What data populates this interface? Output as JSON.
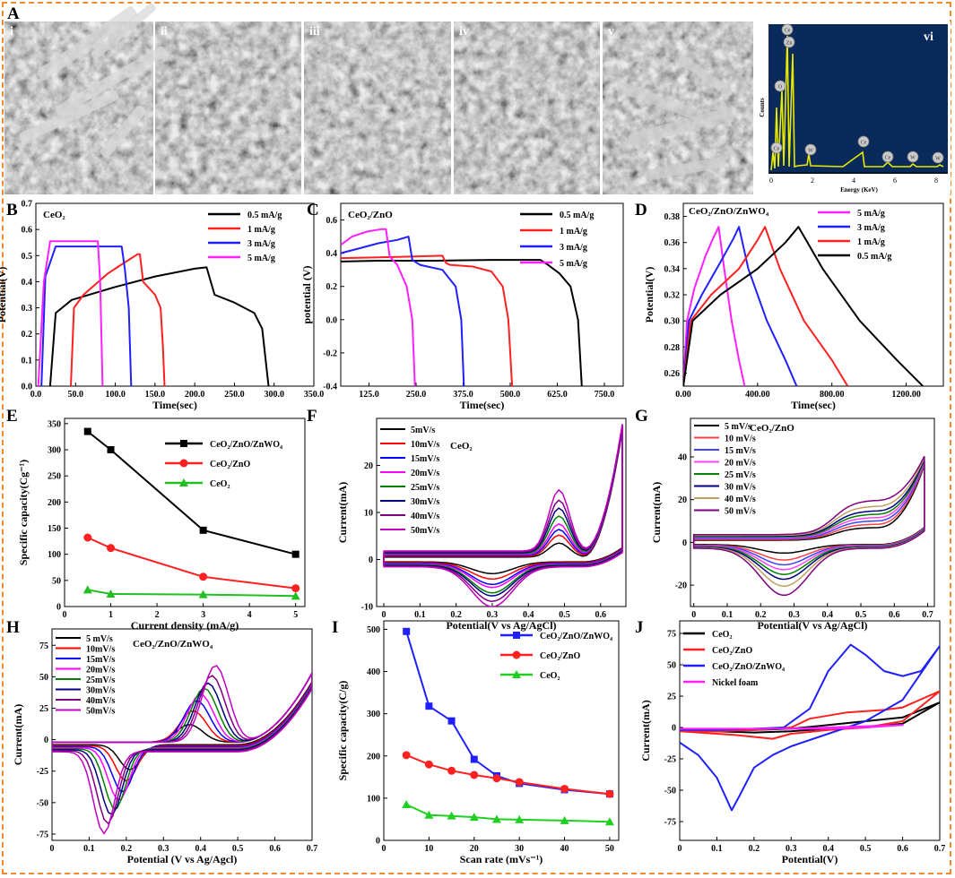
{
  "panels": {
    "A": {
      "label": "A"
    },
    "sem_labels": [
      "i",
      "ii",
      "iii",
      "iv",
      "v"
    ],
    "edx": {
      "label": "vi",
      "xlabel": "Energy (KeV)",
      "ylabel": "Counts",
      "ticks": [
        "0",
        "2",
        "4",
        "6",
        "8"
      ],
      "peaks": [
        "Ce",
        "Zn",
        "O",
        "Ce",
        "W",
        "Ce",
        "Ce",
        "W",
        "W"
      ],
      "colors": {
        "bg": "#0b2a5c",
        "spectrum": "#e8e800"
      }
    }
  },
  "chart_data": [
    {
      "id": "B",
      "type": "line",
      "title": "CeO₂",
      "xlabel": "Time(sec)",
      "ylabel": "Potential(V)",
      "xlim": [
        0,
        350
      ],
      "ylim": [
        0,
        0.7
      ],
      "xticks": [
        0,
        50,
        100,
        150,
        200,
        250,
        300,
        350
      ],
      "yticks": [
        0.0,
        0.1,
        0.2,
        0.3,
        0.4,
        0.5,
        0.6,
        0.7
      ],
      "series": [
        {
          "name": "0.5 mA/g",
          "color": "#000000",
          "x": [
            18,
            25,
            45,
            100,
            150,
            200,
            215,
            225,
            250,
            275,
            285,
            290,
            293
          ],
          "y": [
            0,
            0.28,
            0.33,
            0.38,
            0.42,
            0.45,
            0.455,
            0.35,
            0.32,
            0.28,
            0.22,
            0.08,
            0
          ]
        },
        {
          "name": "1 mA/g",
          "color": "#ff2020",
          "x": [
            44,
            48,
            60,
            90,
            110,
            128,
            131,
            135,
            150,
            157,
            160,
            162
          ],
          "y": [
            0,
            0.3,
            0.35,
            0.43,
            0.47,
            0.505,
            0.505,
            0.4,
            0.35,
            0.3,
            0.15,
            0
          ]
        },
        {
          "name": "3 mA/g",
          "color": "#2020ff",
          "x": [
            7,
            12,
            25,
            108,
            112,
            117,
            120
          ],
          "y": [
            0,
            0.42,
            0.535,
            0.535,
            0.45,
            0.3,
            0
          ]
        },
        {
          "name": "5 mA/g",
          "color": "#ff20ff",
          "x": [
            3,
            10,
            18,
            78,
            81,
            84
          ],
          "y": [
            0,
            0.4,
            0.555,
            0.555,
            0.4,
            0
          ]
        }
      ]
    },
    {
      "id": "C",
      "type": "line",
      "title": "CeO₂/ZnO",
      "xlabel": "Time(sec)",
      "ylabel": "potential (V)",
      "xlim": [
        50,
        800
      ],
      "ylim": [
        -0.4,
        0.7
      ],
      "xticks": [
        125,
        250,
        375,
        500,
        625,
        750
      ],
      "yticks": [
        -0.4,
        -0.2,
        0.0,
        0.2,
        0.4,
        0.6
      ],
      "series": [
        {
          "name": "0.5 mA/g",
          "color": "#000000",
          "x": [
            50,
            150,
            300,
            450,
            580,
            600,
            630,
            660,
            680,
            690
          ],
          "y": [
            0.35,
            0.355,
            0.355,
            0.36,
            0.36,
            0.33,
            0.28,
            0.2,
            0,
            -0.4
          ]
        },
        {
          "name": "1 mA/g",
          "color": "#ff2020",
          "x": [
            50,
            150,
            250,
            320,
            330,
            340,
            400,
            450,
            480,
            495,
            505
          ],
          "y": [
            0.37,
            0.375,
            0.38,
            0.385,
            0.34,
            0.33,
            0.32,
            0.29,
            0.2,
            0,
            -0.4
          ]
        },
        {
          "name": "3 mA/g",
          "color": "#2020ff",
          "x": [
            50,
            100,
            150,
            200,
            230,
            240,
            260,
            320,
            355,
            370,
            377
          ],
          "y": [
            0.4,
            0.43,
            0.46,
            0.48,
            0.5,
            0.36,
            0.33,
            0.3,
            0.2,
            0,
            -0.4
          ]
        },
        {
          "name": "5 mA/g",
          "color": "#ff20ff",
          "x": [
            50,
            80,
            120,
            160,
            170,
            180,
            200,
            225,
            240,
            247
          ],
          "y": [
            0.45,
            0.5,
            0.53,
            0.545,
            0.545,
            0.38,
            0.33,
            0.2,
            0,
            -0.4
          ]
        }
      ]
    },
    {
      "id": "D",
      "type": "line",
      "title": "CeO₂/ZnO/ZnWO₄",
      "xlabel": "Time(sec)",
      "ylabel": "Potential(V)",
      "xlim": [
        0,
        1400
      ],
      "ylim": [
        0.25,
        0.39
      ],
      "xticks": [
        0,
        400,
        800,
        1200
      ],
      "yticks": [
        0.26,
        0.28,
        0.3,
        0.32,
        0.34,
        0.36,
        0.38
      ],
      "series": [
        {
          "name": "5 mA/g",
          "color": "#ff20ff",
          "x": [
            0,
            20,
            60,
            120,
            160,
            190,
            220,
            260,
            300,
            330
          ],
          "y": [
            0.25,
            0.3,
            0.325,
            0.35,
            0.363,
            0.372,
            0.34,
            0.3,
            0.27,
            0.25
          ]
        },
        {
          "name": "3 mA/g",
          "color": "#2020ff",
          "x": [
            0,
            30,
            100,
            200,
            270,
            300,
            350,
            450,
            550,
            610
          ],
          "y": [
            0.25,
            0.3,
            0.32,
            0.345,
            0.363,
            0.372,
            0.34,
            0.3,
            0.27,
            0.25
          ]
        },
        {
          "name": "1 mA/g",
          "color": "#ff2020",
          "x": [
            0,
            40,
            150,
            300,
            400,
            440,
            520,
            650,
            800,
            885
          ],
          "y": [
            0.25,
            0.3,
            0.32,
            0.34,
            0.362,
            0.372,
            0.34,
            0.3,
            0.27,
            0.25
          ]
        },
        {
          "name": "0.5 mA/g",
          "color": "#000000",
          "x": [
            0,
            50,
            200,
            400,
            550,
            620,
            750,
            950,
            1150,
            1290
          ],
          "y": [
            0.25,
            0.3,
            0.32,
            0.34,
            0.36,
            0.372,
            0.34,
            0.3,
            0.27,
            0.25
          ]
        }
      ]
    },
    {
      "id": "E",
      "type": "line",
      "xlabel": "Current density   (mA/g)",
      "ylabel": "Specific capacity(Cg⁻¹)",
      "xlim": [
        0,
        5.2
      ],
      "ylim": [
        0,
        360
      ],
      "xticks": [
        0,
        1,
        2,
        3,
        4,
        5
      ],
      "yticks": [
        0,
        50,
        100,
        150,
        200,
        250,
        300,
        350
      ],
      "series": [
        {
          "name": "CeO₂/ZnO/ZnWO₄",
          "color": "#000000",
          "marker": "square",
          "x": [
            0.5,
            1,
            3,
            5
          ],
          "y": [
            335,
            300,
            146,
            100
          ]
        },
        {
          "name": "CeO₂/ZnO",
          "color": "#ff2020",
          "marker": "circle",
          "x": [
            0.5,
            1,
            3,
            5
          ],
          "y": [
            132,
            112,
            57,
            35
          ]
        },
        {
          "name": "CeO₂",
          "color": "#20c020",
          "marker": "triangle",
          "x": [
            0.5,
            1,
            3,
            5
          ],
          "y": [
            32,
            24,
            23,
            20
          ]
        }
      ]
    },
    {
      "id": "F",
      "type": "line",
      "title": "CeO₂",
      "xlabel": "Potential(V vs Ag/AgCl)",
      "ylabel": "Current(mA)",
      "xlim": [
        -0.02,
        0.67
      ],
      "ylim": [
        -10,
        30
      ],
      "xticks": [
        0.0,
        0.1,
        0.2,
        0.3,
        0.4,
        0.5,
        0.6
      ],
      "yticks": [
        -10,
        0,
        10,
        20
      ],
      "legend": [
        "5mV/s",
        "10mV/s",
        "15mV/s",
        "20mV/s",
        "25mV/s",
        "30mV/s",
        "40mV/s",
        "50mV/s"
      ],
      "colors": [
        "#000000",
        "#ff0000",
        "#0000ff",
        "#ff00ff",
        "#008000",
        "#000080",
        "#800080",
        "#c000c0"
      ],
      "peaks_mA": [
        3,
        4.5,
        5.5,
        6.5,
        8,
        9.5,
        11,
        13
      ],
      "troughs_mA": [
        -2.5,
        -3.5,
        -4.5,
        -5,
        -6,
        -6.5,
        -7.5,
        -8.5
      ]
    },
    {
      "id": "G",
      "type": "line",
      "title": "CeO₂/ZnO",
      "xlabel": "Potential(V vs Ag/AgCl)",
      "ylabel": "Current(mA)",
      "xlim": [
        -0.01,
        0.72
      ],
      "ylim": [
        -30,
        58
      ],
      "xticks": [
        0.0,
        0.1,
        0.2,
        0.3,
        0.4,
        0.5,
        0.6,
        0.7
      ],
      "yticks": [
        -20,
        0,
        20,
        40
      ],
      "legend": [
        "5 mV/s",
        "10 mV/s",
        "15 mV/s",
        "20 mV/s",
        "25 mV/s",
        "30 mV/s",
        "40 mV/s",
        "50 mV/s"
      ],
      "colors": [
        "#000000",
        "#ff4040",
        "#4040ff",
        "#ff40ff",
        "#008000",
        "#000080",
        "#c0a060",
        "#800080"
      ],
      "peaks_mA": [
        10,
        12,
        14,
        16,
        18,
        20,
        23,
        27
      ],
      "troughs_mA": [
        -4,
        -7,
        -9,
        -11,
        -13,
        -15,
        -18,
        -22
      ]
    },
    {
      "id": "H",
      "type": "line",
      "title": "CeO₂/ZnO/ZnWO₄",
      "xlabel": "Potential (V vs Ag/Agcl)",
      "ylabel": "Current(mA)",
      "xlim": [
        0.0,
        0.7
      ],
      "ylim": [
        -80,
        88
      ],
      "xticks": [
        0.0,
        0.1,
        0.2,
        0.3,
        0.4,
        0.5,
        0.6,
        0.7
      ],
      "yticks": [
        -75,
        -50,
        -25,
        0,
        25,
        50,
        75
      ],
      "legend": [
        "5 mV/s",
        "10mV/s",
        "15mV/s",
        "20mV/s",
        "25mV/s",
        "30mV/s",
        "40mV/s",
        "50mV/s"
      ],
      "colors": [
        "#000000",
        "#ff0000",
        "#0000ff",
        "#ff00ff",
        "#008000",
        "#000080",
        "#800080",
        "#c000c0"
      ],
      "peaks_mA": [
        14,
        25,
        33,
        38,
        43,
        47,
        53,
        61
      ],
      "troughs_mA": [
        -20,
        -28,
        -36,
        -42,
        -48,
        -52,
        -58,
        -65
      ]
    },
    {
      "id": "I",
      "type": "line",
      "xlabel": "Scan rate (mVs⁻¹)",
      "ylabel": "Specific capacity(C/g)",
      "xlim": [
        0,
        52
      ],
      "ylim": [
        0,
        520
      ],
      "xticks": [
        0,
        10,
        20,
        30,
        40,
        50
      ],
      "yticks": [
        0,
        100,
        200,
        300,
        400,
        500
      ],
      "series": [
        {
          "name": "CeO₂/ZnO/ZnWO₄",
          "color": "#2020ff",
          "marker": "square",
          "x": [
            5,
            10,
            15,
            20,
            25,
            30,
            40,
            50
          ],
          "y": [
            495,
            318,
            283,
            192,
            153,
            135,
            120,
            110
          ]
        },
        {
          "name": "CeO₂/ZnO",
          "color": "#ff2020",
          "marker": "circle",
          "x": [
            5,
            10,
            15,
            20,
            25,
            30,
            40,
            50
          ],
          "y": [
            202,
            180,
            165,
            155,
            147,
            138,
            122,
            110
          ]
        },
        {
          "name": "CeO₂",
          "color": "#20d020",
          "marker": "triangle",
          "x": [
            5,
            10,
            15,
            20,
            25,
            30,
            40,
            50
          ],
          "y": [
            85,
            60,
            58,
            55,
            50,
            49,
            47,
            44
          ]
        }
      ]
    },
    {
      "id": "J",
      "type": "line",
      "xlabel": "Potential(V)",
      "ylabel": "Current(mA)",
      "xlim": [
        0.0,
        0.7
      ],
      "ylim": [
        -90,
        85
      ],
      "xticks": [
        0.0,
        0.1,
        0.2,
        0.3,
        0.4,
        0.5,
        0.6,
        0.7
      ],
      "yticks": [
        -75,
        -50,
        -25,
        0,
        25,
        50,
        75
      ],
      "series": [
        {
          "name": "CeO₂",
          "color": "#000000",
          "x": [
            0.0,
            0.1,
            0.2,
            0.3,
            0.4,
            0.5,
            0.6,
            0.7,
            0.6,
            0.5,
            0.4,
            0.3,
            0.2,
            0.1,
            0.0
          ],
          "y": [
            -2,
            -2,
            -2,
            -1,
            2,
            5,
            8,
            20,
            3,
            0,
            -1,
            -3,
            -4,
            -3,
            -2
          ]
        },
        {
          "name": "CeO₂/ZnO",
          "color": "#ff2020",
          "x": [
            0.0,
            0.1,
            0.2,
            0.3,
            0.35,
            0.45,
            0.55,
            0.6,
            0.7,
            0.6,
            0.5,
            0.4,
            0.3,
            0.25,
            0.15,
            0.0
          ],
          "y": [
            -3,
            -3,
            -2,
            0,
            7,
            12,
            14,
            16,
            29,
            5,
            0,
            -2,
            -5,
            -9,
            -6,
            -3
          ]
        },
        {
          "name": "CeO₂/ZnO/ZnWO₄",
          "color": "#2020ff",
          "x": [
            0.0,
            0.1,
            0.2,
            0.28,
            0.35,
            0.4,
            0.46,
            0.5,
            0.55,
            0.6,
            0.65,
            0.7,
            0.6,
            0.5,
            0.4,
            0.3,
            0.25,
            0.2,
            0.16,
            0.14,
            0.1,
            0.05,
            0.0
          ],
          "y": [
            -2,
            -2,
            -1,
            0,
            15,
            45,
            66,
            58,
            45,
            41,
            45,
            65,
            22,
            5,
            -5,
            -15,
            -22,
            -32,
            -55,
            -66,
            -40,
            -22,
            -12
          ]
        },
        {
          "name": "Nickel foam",
          "color": "#ff20ff",
          "x": [
            0.0,
            0.1,
            0.2,
            0.3,
            0.4,
            0.5,
            0.6,
            0.5,
            0.4,
            0.3,
            0.2,
            0.1,
            0.0
          ],
          "y": [
            -1,
            -1,
            -1,
            -1,
            0,
            1,
            2,
            0,
            -1,
            -1,
            -1,
            -1,
            -1
          ]
        }
      ]
    }
  ]
}
